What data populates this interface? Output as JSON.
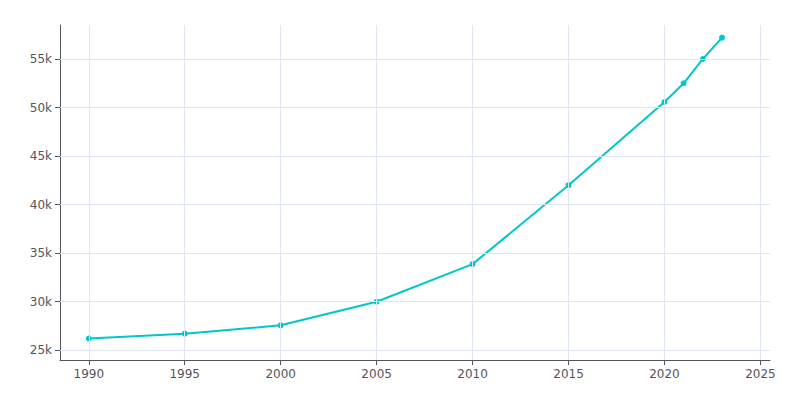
{
  "chart_data": {
    "type": "line",
    "x": [
      1990,
      1995,
      2000,
      2005,
      2010,
      2015,
      2020,
      2021,
      2022,
      2023
    ],
    "values": [
      26211,
      26715,
      27569,
      30000,
      33874,
      42000,
      50570,
      52500,
      55000,
      57200
    ],
    "color": "#00c8c8",
    "marker": "circle",
    "xlim": [
      1988.5,
      2025.5
    ],
    "xticks": [
      1990,
      1995,
      2000,
      2005,
      2010,
      2015,
      2020,
      2025
    ],
    "ylim": [
      24000,
      58500
    ],
    "yticks": [
      {
        "value": 25000,
        "label": "25k"
      },
      {
        "value": 30000,
        "label": "30k"
      },
      {
        "value": 35000,
        "label": "35k"
      },
      {
        "value": 40000,
        "label": "40k"
      },
      {
        "value": 45000,
        "label": "45k"
      },
      {
        "value": 50000,
        "label": "50k"
      },
      {
        "value": 55000,
        "label": "55k"
      }
    ],
    "grid": true
  }
}
